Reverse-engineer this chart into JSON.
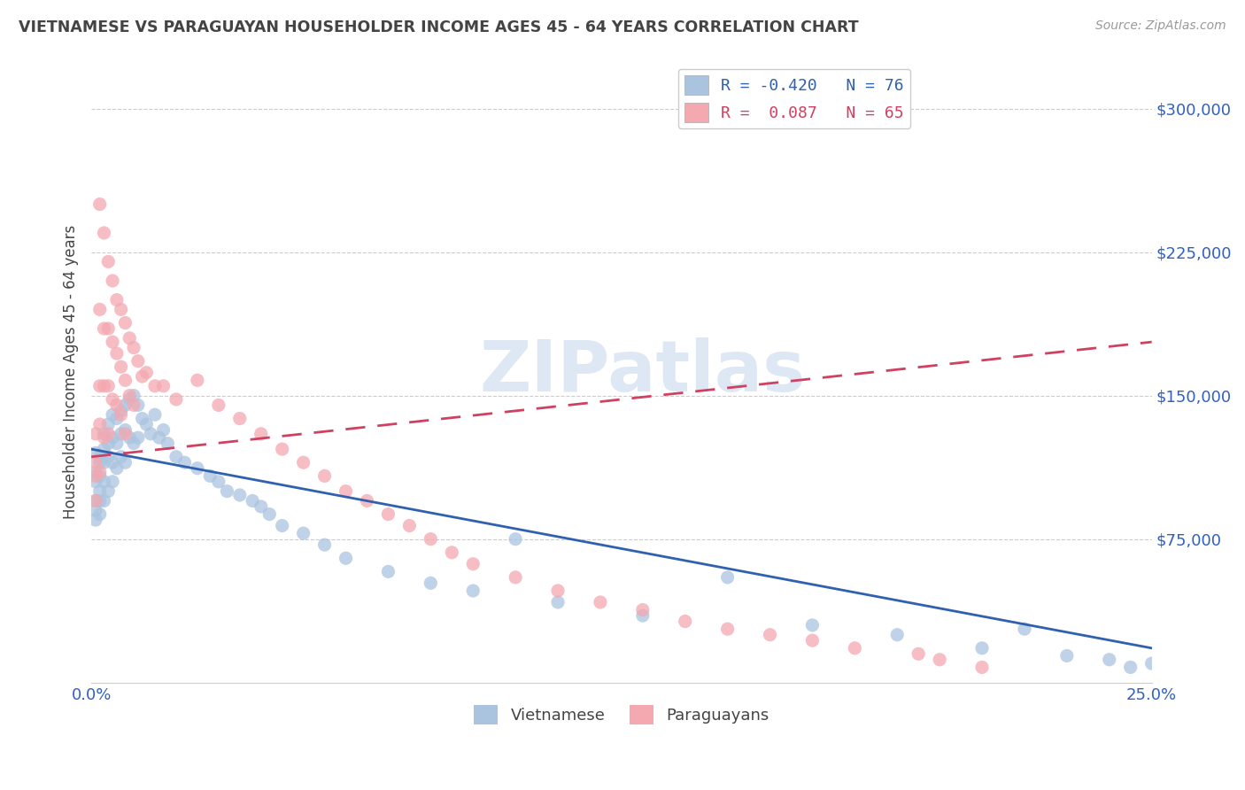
{
  "title": "VIETNAMESE VS PARAGUAYAN HOUSEHOLDER INCOME AGES 45 - 64 YEARS CORRELATION CHART",
  "source": "Source: ZipAtlas.com",
  "ylabel": "Householder Income Ages 45 - 64 years",
  "xlim": [
    0.0,
    0.25
  ],
  "ylim": [
    0,
    325000
  ],
  "yticks": [
    75000,
    150000,
    225000,
    300000
  ],
  "ytick_labels": [
    "$75,000",
    "$150,000",
    "$225,000",
    "$300,000"
  ],
  "xticks": [
    0.0,
    0.05,
    0.1,
    0.15,
    0.2,
    0.25
  ],
  "xtick_labels": [
    "0.0%",
    "",
    "",
    "",
    "",
    "25.0%"
  ],
  "grid_color": "#cccccc",
  "background_color": "#ffffff",
  "watermark": "ZIPatlas",
  "legend_label_blue": "R = -0.420   N = 76",
  "legend_label_pink": "R =  0.087   N = 65",
  "legend_label_bottom_blue": "Vietnamese",
  "legend_label_bottom_pink": "Paraguayans",
  "blue_color": "#aac4e0",
  "pink_color": "#f4a8b0",
  "blue_line_color": "#3060b0",
  "pink_line_color": "#d04060",
  "title_color": "#444444",
  "axis_label_color": "#444444",
  "tick_label_color": "#3060c0",
  "blue_regression_x0": 0.0,
  "blue_regression_y0": 122000,
  "blue_regression_x1": 0.25,
  "blue_regression_y1": 18000,
  "pink_regression_x0": 0.0,
  "pink_regression_y0": 118000,
  "pink_regression_x1": 0.25,
  "pink_regression_y1": 178000,
  "blue_scatter_x": [
    0.001,
    0.001,
    0.001,
    0.001,
    0.001,
    0.001,
    0.002,
    0.002,
    0.002,
    0.002,
    0.002,
    0.002,
    0.003,
    0.003,
    0.003,
    0.003,
    0.003,
    0.004,
    0.004,
    0.004,
    0.004,
    0.005,
    0.005,
    0.005,
    0.005,
    0.006,
    0.006,
    0.006,
    0.007,
    0.007,
    0.007,
    0.008,
    0.008,
    0.008,
    0.009,
    0.009,
    0.01,
    0.01,
    0.011,
    0.011,
    0.012,
    0.013,
    0.014,
    0.015,
    0.016,
    0.017,
    0.018,
    0.02,
    0.022,
    0.025,
    0.028,
    0.03,
    0.032,
    0.035,
    0.038,
    0.04,
    0.042,
    0.045,
    0.05,
    0.055,
    0.06,
    0.07,
    0.08,
    0.09,
    0.1,
    0.11,
    0.13,
    0.15,
    0.17,
    0.19,
    0.21,
    0.22,
    0.23,
    0.24,
    0.245,
    0.25
  ],
  "blue_scatter_y": [
    120000,
    110000,
    105000,
    95000,
    90000,
    85000,
    118000,
    115000,
    108000,
    100000,
    95000,
    88000,
    130000,
    122000,
    115000,
    105000,
    95000,
    135000,
    125000,
    118000,
    100000,
    140000,
    128000,
    115000,
    105000,
    138000,
    125000,
    112000,
    142000,
    130000,
    118000,
    145000,
    132000,
    115000,
    148000,
    128000,
    150000,
    125000,
    145000,
    128000,
    138000,
    135000,
    130000,
    140000,
    128000,
    132000,
    125000,
    118000,
    115000,
    112000,
    108000,
    105000,
    100000,
    98000,
    95000,
    92000,
    88000,
    82000,
    78000,
    72000,
    65000,
    58000,
    52000,
    48000,
    75000,
    42000,
    35000,
    55000,
    30000,
    25000,
    18000,
    28000,
    14000,
    12000,
    8000,
    10000
  ],
  "pink_scatter_x": [
    0.001,
    0.001,
    0.001,
    0.001,
    0.002,
    0.002,
    0.002,
    0.002,
    0.002,
    0.003,
    0.003,
    0.003,
    0.003,
    0.004,
    0.004,
    0.004,
    0.004,
    0.005,
    0.005,
    0.005,
    0.006,
    0.006,
    0.006,
    0.007,
    0.007,
    0.007,
    0.008,
    0.008,
    0.008,
    0.009,
    0.009,
    0.01,
    0.01,
    0.011,
    0.012,
    0.013,
    0.015,
    0.017,
    0.02,
    0.025,
    0.03,
    0.035,
    0.04,
    0.045,
    0.05,
    0.055,
    0.06,
    0.065,
    0.07,
    0.075,
    0.08,
    0.085,
    0.09,
    0.1,
    0.11,
    0.12,
    0.13,
    0.14,
    0.15,
    0.16,
    0.17,
    0.18,
    0.195,
    0.2,
    0.21
  ],
  "pink_scatter_y": [
    130000,
    115000,
    108000,
    95000,
    250000,
    195000,
    155000,
    135000,
    110000,
    235000,
    185000,
    155000,
    128000,
    220000,
    185000,
    155000,
    130000,
    210000,
    178000,
    148000,
    200000,
    172000,
    145000,
    195000,
    165000,
    140000,
    188000,
    158000,
    130000,
    180000,
    150000,
    175000,
    145000,
    168000,
    160000,
    162000,
    155000,
    155000,
    148000,
    158000,
    145000,
    138000,
    130000,
    122000,
    115000,
    108000,
    100000,
    95000,
    88000,
    82000,
    75000,
    68000,
    62000,
    55000,
    48000,
    42000,
    38000,
    32000,
    28000,
    25000,
    22000,
    18000,
    15000,
    12000,
    8000
  ]
}
